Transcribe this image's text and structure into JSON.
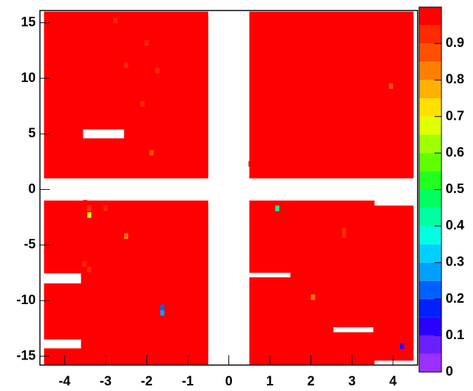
{
  "chart_data": {
    "type": "heatmap",
    "xlim": [
      -4.6,
      4.6
    ],
    "ylim": [
      -15.8,
      16.1
    ],
    "xticks": [
      -4,
      -3,
      -2,
      -1,
      0,
      1,
      2,
      3,
      4
    ],
    "yticks": [
      -15,
      -10,
      -5,
      0,
      5,
      10,
      15
    ],
    "zlim": [
      0,
      1
    ],
    "zticks": [
      0,
      0.1,
      0.2,
      0.3,
      0.4,
      0.5,
      0.6,
      0.7,
      0.8,
      0.9
    ],
    "palette": [
      "#9b30ff",
      "#6a1fff",
      "#2a00ff",
      "#0020ff",
      "#0060ff",
      "#00a0ff",
      "#00d0ff",
      "#00ffe0",
      "#00ffa0",
      "#00ff60",
      "#20ff20",
      "#60ff00",
      "#a0ff00",
      "#e0ff00",
      "#ffe000",
      "#ffb000",
      "#ff8000",
      "#ff5000",
      "#ff2a00",
      "#ff0000"
    ],
    "bin_width": [
      0.1,
      0.5
    ],
    "blocks": [
      {
        "x": [
          -4.5,
          -0.5
        ],
        "y": [
          1,
          16
        ],
        "value": 1
      },
      {
        "x": [
          0.5,
          4.5
        ],
        "y": [
          1,
          16
        ],
        "value": 1
      },
      {
        "x": [
          -4.5,
          -0.5
        ],
        "y": [
          -15.75,
          -1
        ],
        "value": 1
      },
      {
        "x": [
          0.5,
          4.5
        ],
        "y": [
          -15.75,
          -1
        ],
        "value": 1
      }
    ],
    "empty": [
      {
        "x": [
          -3.55,
          -2.55
        ],
        "y": [
          4.6,
          5.4
        ]
      },
      {
        "x": [
          -4.5,
          -3.6
        ],
        "y": [
          -8.45,
          -7.55
        ]
      },
      {
        "x": [
          -4.5,
          -3.6
        ],
        "y": [
          -14.3,
          -13.5
        ]
      },
      {
        "x": [
          0.5,
          1.5
        ],
        "y": [
          -7.9,
          -7.5
        ]
      },
      {
        "x": [
          2.55,
          3.52
        ],
        "y": [
          -12.85,
          -12.4
        ]
      },
      {
        "x": [
          3.55,
          4.5
        ],
        "y": [
          -15.8,
          -15.4
        ]
      },
      {
        "x": [
          3.55,
          4.5
        ],
        "y": [
          -1.45,
          -0.95
        ]
      }
    ],
    "cells": [
      {
        "x": -2.76,
        "y": 15.2,
        "value": 0.9
      },
      {
        "x": -2.0,
        "y": 13.2,
        "value": 0.9
      },
      {
        "x": -2.5,
        "y": 11.2,
        "value": 0.9
      },
      {
        "x": -1.74,
        "y": 10.7,
        "value": 0.9
      },
      {
        "x": -3.64,
        "y": 7.75,
        "value": 0.95
      },
      {
        "x": -2.1,
        "y": 7.7,
        "value": 0.9
      },
      {
        "x": -1.88,
        "y": 3.3,
        "value": 0.87
      },
      {
        "x": 0.53,
        "y": 2.3,
        "value": 0.95
      },
      {
        "x": 3.08,
        "y": 2.3,
        "value": 0.95
      },
      {
        "x": 3.83,
        "y": 9.3,
        "value": 0.95
      },
      {
        "x": 3.95,
        "y": 9.3,
        "value": 0.85
      },
      {
        "x": -3.5,
        "y": -1.2,
        "value": 0.95
      },
      {
        "x": -3.4,
        "y": -1.7,
        "value": 0.9
      },
      {
        "x": -3.0,
        "y": -1.7,
        "value": 0.9
      },
      {
        "x": -3.4,
        "y": -2.3,
        "value": 0.65
      },
      {
        "x": 1.18,
        "y": -1.7,
        "value": 0.4
      },
      {
        "x": 2.81,
        "y": -3.7,
        "value": 0.9
      },
      {
        "x": 2.81,
        "y": -4.1,
        "value": 0.9
      },
      {
        "x": 4.08,
        "y": -3.7,
        "value": 0.95
      },
      {
        "x": -2.5,
        "y": -4.2,
        "value": 0.82
      },
      {
        "x": -3.13,
        "y": -5.7,
        "value": 0.95
      },
      {
        "x": -3.52,
        "y": -6.7,
        "value": 0.9
      },
      {
        "x": -3.4,
        "y": -7.2,
        "value": 0.9
      },
      {
        "x": -3.27,
        "y": -7.2,
        "value": 0.95
      },
      {
        "x": -2.25,
        "y": -9.1,
        "value": 0.95
      },
      {
        "x": -1.62,
        "y": -10.1,
        "value": 0.95
      },
      {
        "x": -1.62,
        "y": -10.6,
        "value": 0.2
      },
      {
        "x": -1.62,
        "y": -11.1,
        "value": 0.25
      },
      {
        "x": -1.11,
        "y": -12.7,
        "value": 0.95
      },
      {
        "x": -3.25,
        "y": -13.2,
        "value": 0.95
      },
      {
        "x": 2.05,
        "y": -9.7,
        "value": 0.8
      },
      {
        "x": 2.95,
        "y": -14.1,
        "value": 0.95
      },
      {
        "x": 4.22,
        "y": -14.1,
        "value": 0.12
      }
    ]
  }
}
